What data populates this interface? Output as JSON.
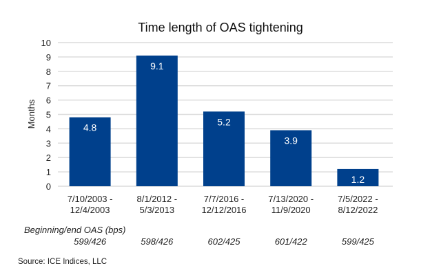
{
  "chart_data": {
    "type": "bar",
    "title": "Time length of OAS tightening",
    "xlabel": "",
    "ylabel": "Months",
    "ylim": [
      0,
      10
    ],
    "yticks": [
      0,
      1,
      2,
      3,
      4,
      5,
      6,
      7,
      8,
      9,
      10
    ],
    "grid": true,
    "categories": [
      [
        "7/10/2003 -",
        "12/4/2003"
      ],
      [
        "8/1/2012 -",
        "5/3/2013"
      ],
      [
        "7/7/2016 -",
        "12/12/2016"
      ],
      [
        "7/13/2020 -",
        "11/9/2020"
      ],
      [
        "7/5/2022 -",
        "8/12/2022"
      ]
    ],
    "values": [
      4.8,
      9.1,
      5.2,
      3.9,
      1.2
    ],
    "data_labels": [
      "4.8",
      "9.1",
      "5.2",
      "3.9",
      "1.2"
    ],
    "bar_color": "#00408c",
    "oas_header": "Beginning/end OAS (bps)",
    "oas_values": [
      "599/426",
      "598/426",
      "602/425",
      "601/422",
      "599/425"
    ]
  },
  "source": "Source: ICE Indices, LLC"
}
